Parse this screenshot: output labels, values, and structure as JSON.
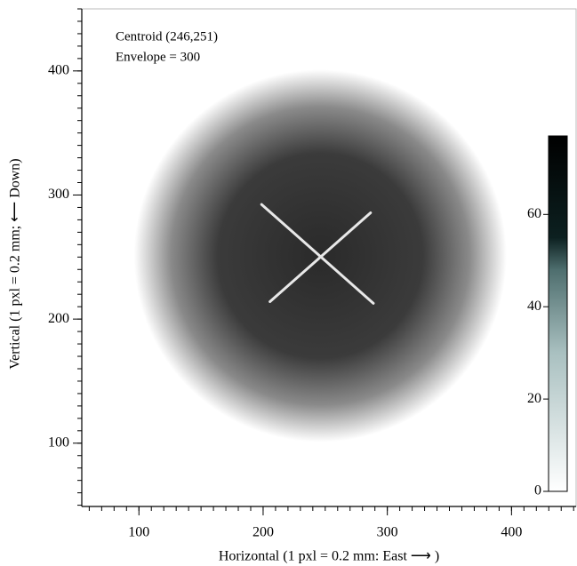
{
  "chart_data": {
    "type": "beam-image",
    "annotations": [
      "Centroid (246,251)",
      "Envelope = 300"
    ],
    "x_label": "Horizontal (1 pxl = 0.2 mm: East ⟶ )",
    "y_label": "Vertical (1 pxl = 0.2 mm; ⟵ Down)",
    "xlim": [
      54,
      452
    ],
    "xticks": [
      100,
      200,
      300,
      400
    ],
    "ylim": [
      49,
      450
    ],
    "yticks": [
      100,
      200,
      300,
      400
    ],
    "beam": {
      "x": 246,
      "y": 251,
      "diameter": 300,
      "color": "#2a2a2a"
    },
    "colorbar": {
      "lim": [
        0,
        77
      ],
      "ticks": [
        0,
        20,
        40,
        60
      ],
      "colormap": [
        {
          "value": 0,
          "color": "#ffffff"
        },
        {
          "value": 30,
          "color": "#a9c0c0"
        },
        {
          "value": 48,
          "color": "#4e6e6e"
        },
        {
          "value": 55,
          "color": "#0c2020"
        },
        {
          "value": 77,
          "color": "#000000"
        }
      ]
    }
  }
}
